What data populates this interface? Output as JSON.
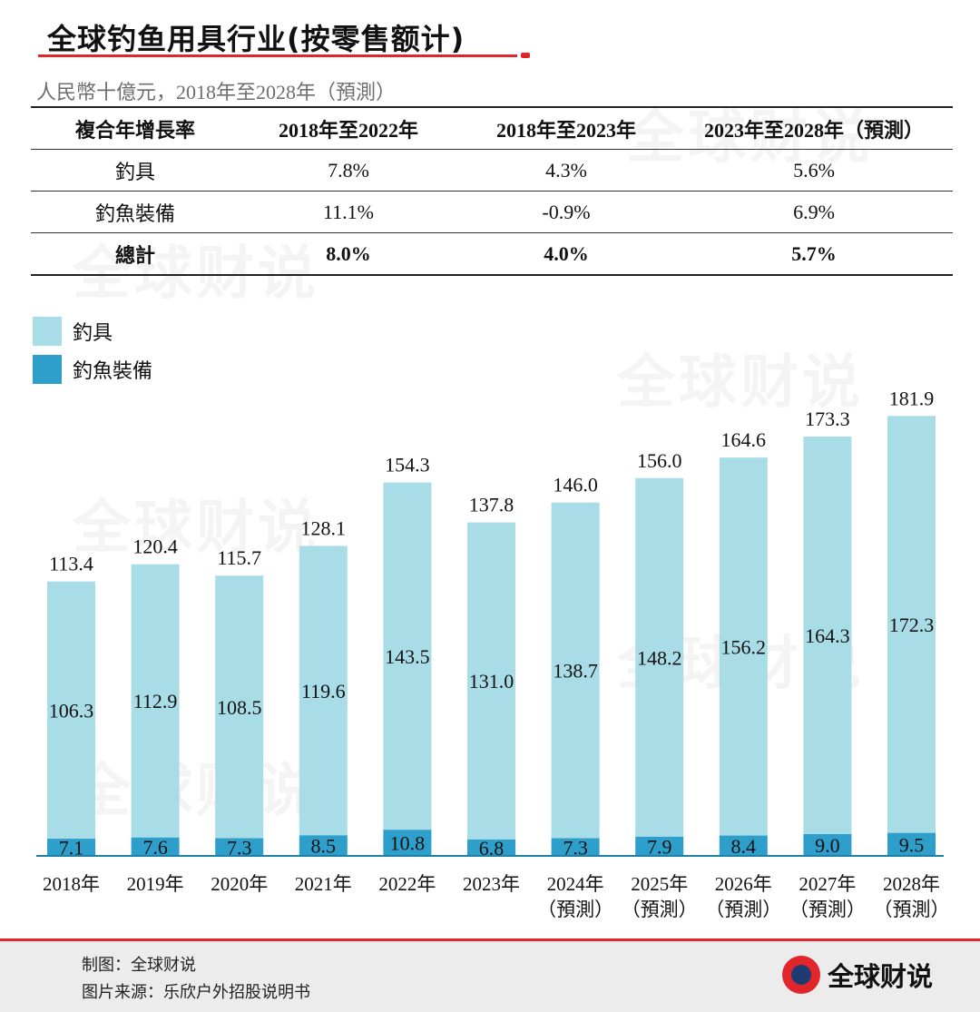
{
  "title": "全球钓鱼用具行业(按零售额计)",
  "unit_text": "人民幣十億元，2018年至2028年（預測）",
  "table": {
    "headers": [
      "複合年增長率",
      "2018年至2022年",
      "2018年至2023年",
      "2023年至2028年（預測）"
    ],
    "rows": [
      {
        "label": "釣具",
        "values": [
          "7.8%",
          "4.3%",
          "5.6%"
        ]
      },
      {
        "label": "釣魚裝備",
        "values": [
          "11.1%",
          "-0.9%",
          "6.9%"
        ]
      },
      {
        "label": "總計",
        "values": [
          "8.0%",
          "4.0%",
          "5.7%"
        ]
      }
    ]
  },
  "legend": [
    {
      "label": "釣具",
      "color": "#a8dce6"
    },
    {
      "label": "釣魚裝備",
      "color": "#2e9fcb"
    }
  ],
  "watermark": "全球财说",
  "chart_data": {
    "type": "bar",
    "stacked": true,
    "categories": [
      [
        "2018年"
      ],
      [
        "2019年"
      ],
      [
        "2020年"
      ],
      [
        "2021年"
      ],
      [
        "2022年"
      ],
      [
        "2023年"
      ],
      [
        "2024年",
        "（預測）"
      ],
      [
        "2025年",
        "（預測）"
      ],
      [
        "2026年",
        "（預測）"
      ],
      [
        "2027年",
        "（預測）"
      ],
      [
        "2028年",
        "（預測）"
      ]
    ],
    "series": [
      {
        "name": "釣魚裝備",
        "color": "#2e9fcb",
        "values": [
          7.1,
          7.6,
          7.3,
          8.5,
          10.8,
          6.8,
          7.3,
          7.9,
          8.4,
          9.0,
          9.5
        ]
      },
      {
        "name": "釣具",
        "color": "#a8dce6",
        "values": [
          106.3,
          112.9,
          108.5,
          119.6,
          143.5,
          131.0,
          138.7,
          148.2,
          156.2,
          164.3,
          172.3
        ]
      }
    ],
    "totals": [
      113.4,
      120.4,
      115.7,
      128.1,
      154.3,
      137.8,
      146.0,
      156.0,
      164.6,
      173.3,
      181.9
    ],
    "value_labels": {
      "bottom": [
        "7.1",
        "7.6",
        "7.3",
        "8.5",
        "10.8",
        "6.8",
        "7.3",
        "7.9",
        "8.4",
        "9.0",
        "9.5"
      ],
      "top": [
        "106.3",
        "112.9",
        "108.5",
        "119.6",
        "143.5",
        "131.0",
        "138.7",
        "148.2",
        "156.2",
        "164.3",
        "172.3"
      ],
      "total": [
        "113.4",
        "120.4",
        "115.7",
        "128.1",
        "154.3",
        "137.8",
        "146.0",
        "156.0",
        "164.6",
        "173.3",
        "181.9"
      ]
    },
    "ylim": [
      0,
      181.9
    ],
    "grid": false,
    "legend_position": "top-left"
  },
  "footer": {
    "credit": "制图：全球财说",
    "source": "图片来源：乐欣户外招股说明书",
    "brand": "全球财说"
  }
}
